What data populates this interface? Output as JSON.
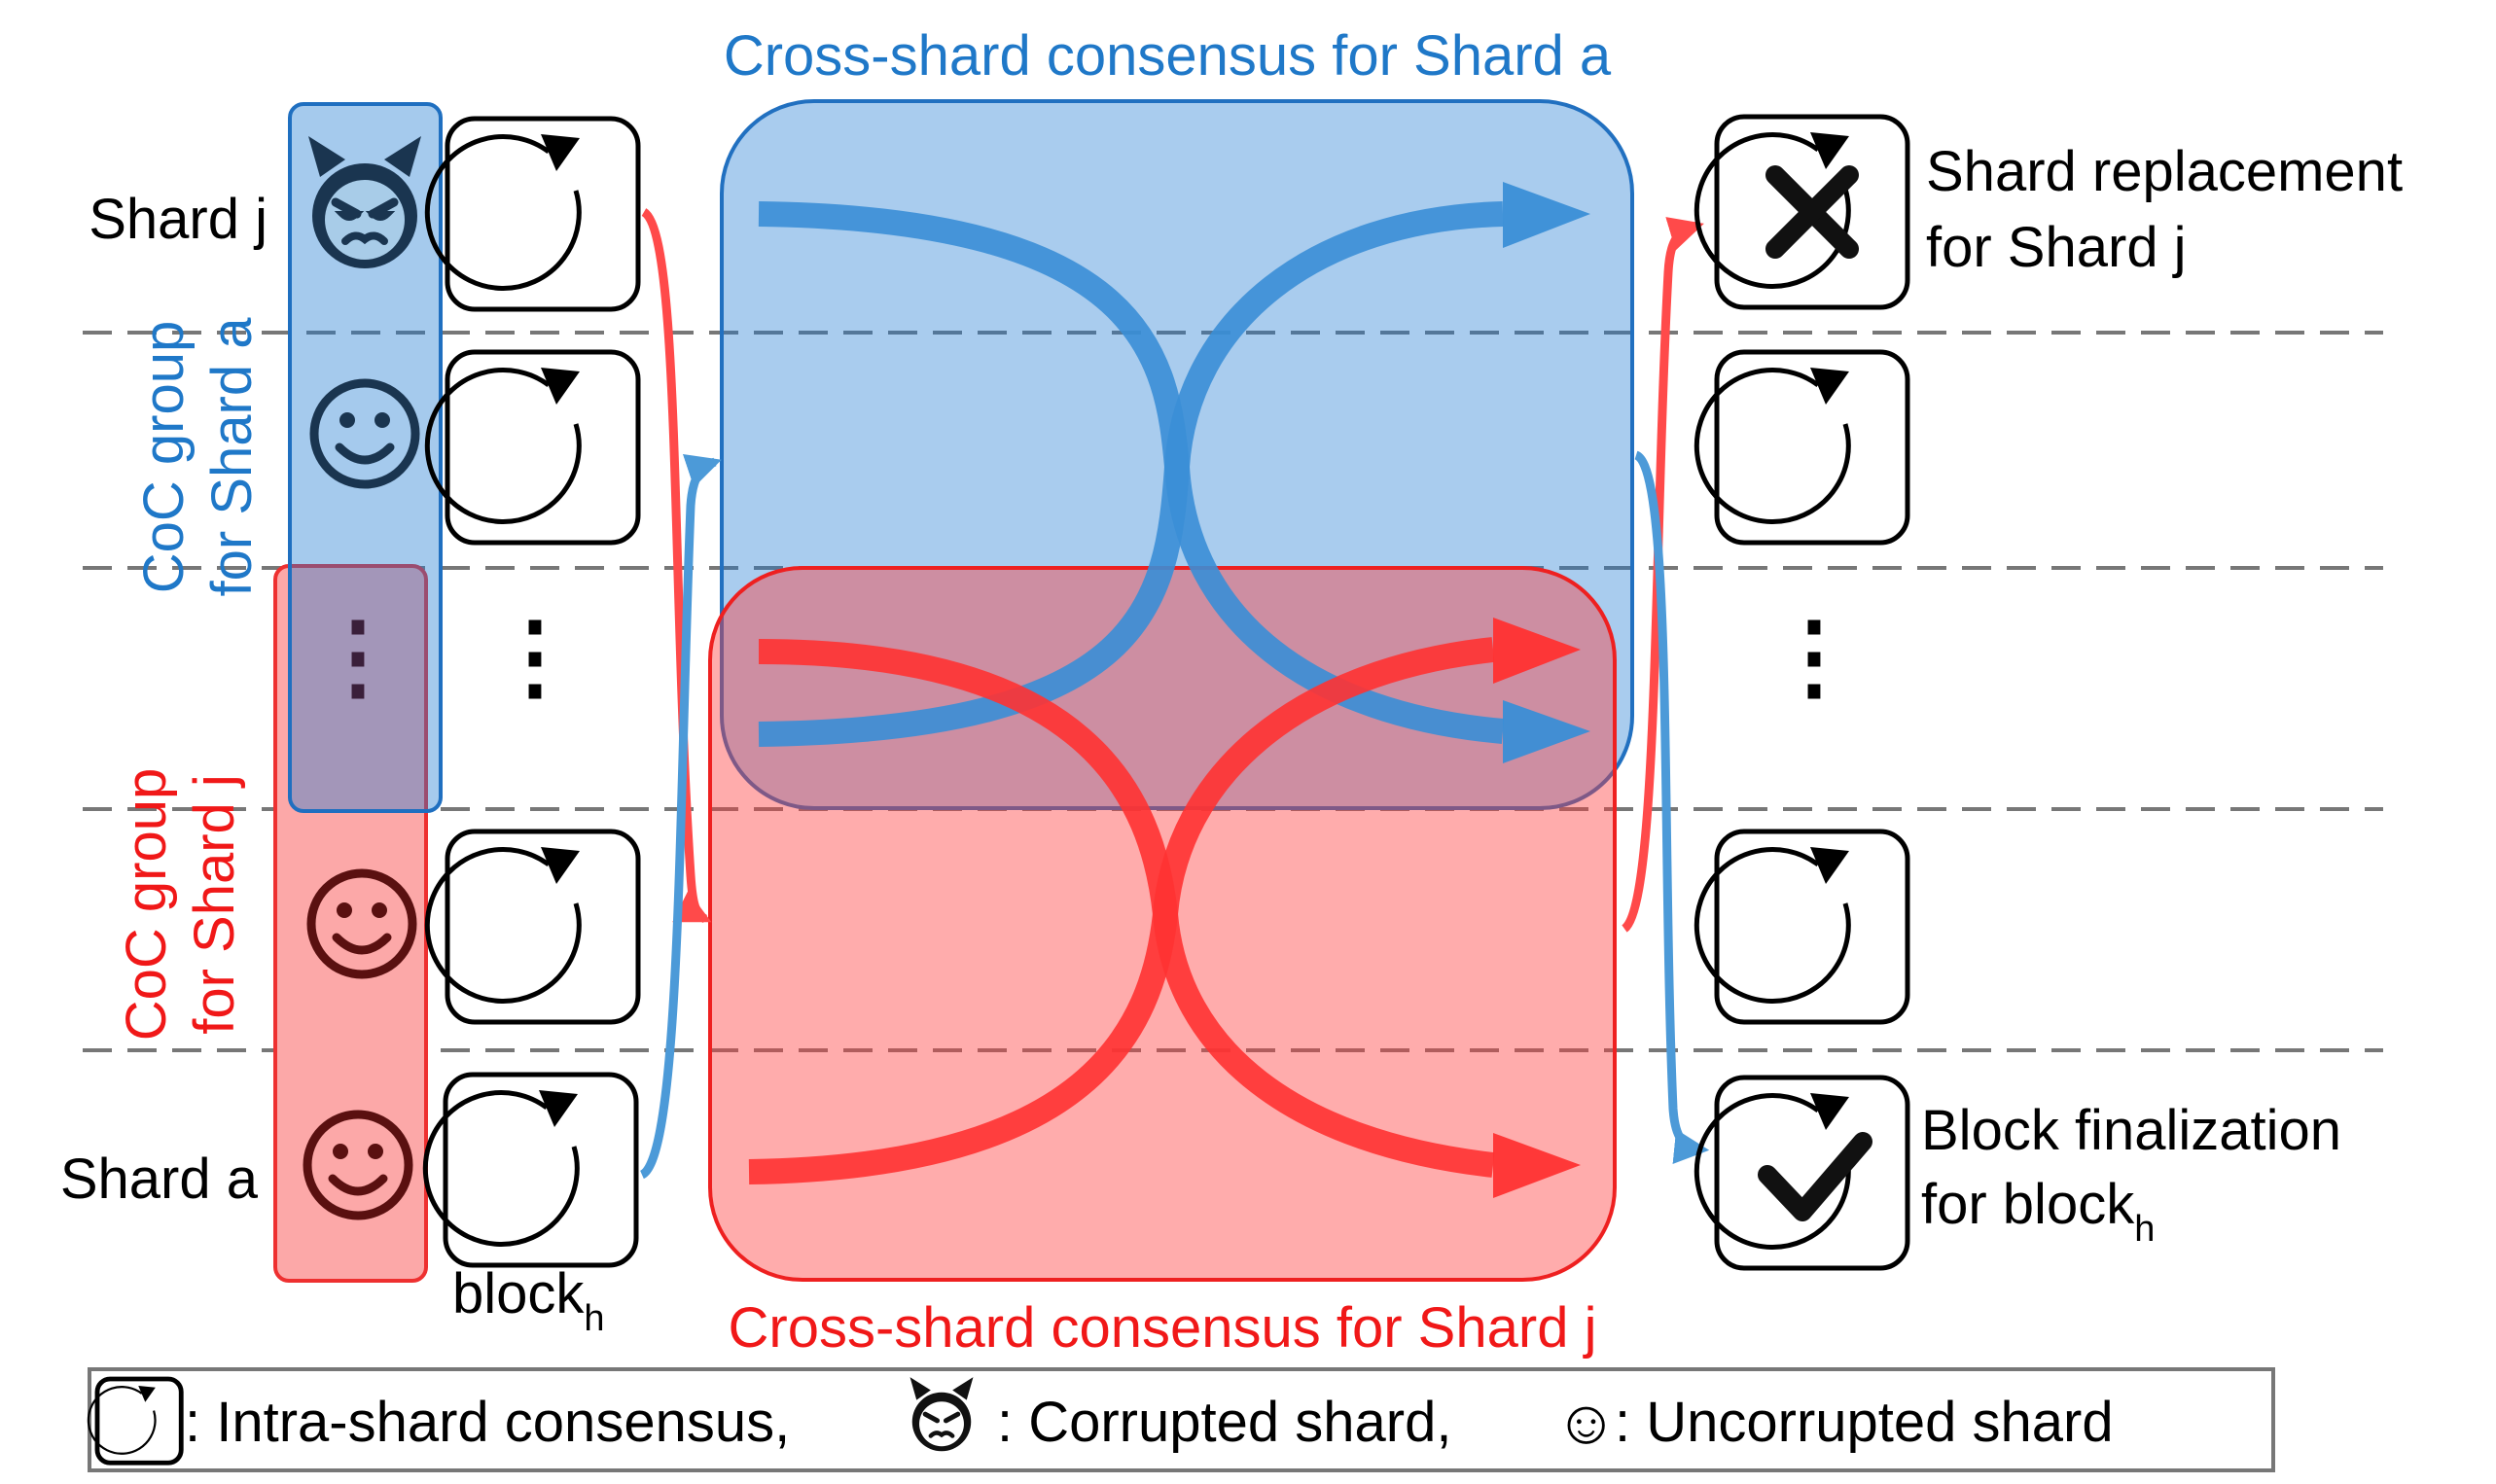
{
  "titles": {
    "top": "Cross-shard consensus for Shard a",
    "bottom": "Cross-shard consensus for Shard j"
  },
  "rows": {
    "shard_j": "Shard j",
    "shard_a": "Shard a",
    "ellipsis": "⋮"
  },
  "groups": {
    "blue_line1": "CoC group",
    "blue_line2": "for Shard a",
    "red_line1": "CoC group",
    "red_line2": "for Shard j"
  },
  "block_label": {
    "base": "block",
    "sub": "h"
  },
  "outcomes": {
    "replacement_line1": "Shard replacement",
    "replacement_line2": "for Shard j",
    "finalization_line1": "Block finalization",
    "finalization_line2_base": "for block",
    "finalization_line2_sub": "h"
  },
  "legend": {
    "intra": ": Intra-shard consensus,",
    "corrupted": ": Corrupted shard,",
    "uncorrupted_glyph": "☺",
    "uncorrupted": ": Uncorrupted shard"
  },
  "icons": {
    "circular": "circular-arrow-icon",
    "corrupted": "devil-face-icon",
    "uncorrupted": "smiley-face-icon",
    "reject": "x-mark-icon",
    "accept": "check-mark-icon"
  },
  "colors": {
    "blue": "#1f78c8",
    "blue_fill": "#a8cce8",
    "red": "#f01818",
    "red_fill": "#fca8a8",
    "dark": "#1a3550",
    "maroon": "#5a1010"
  }
}
